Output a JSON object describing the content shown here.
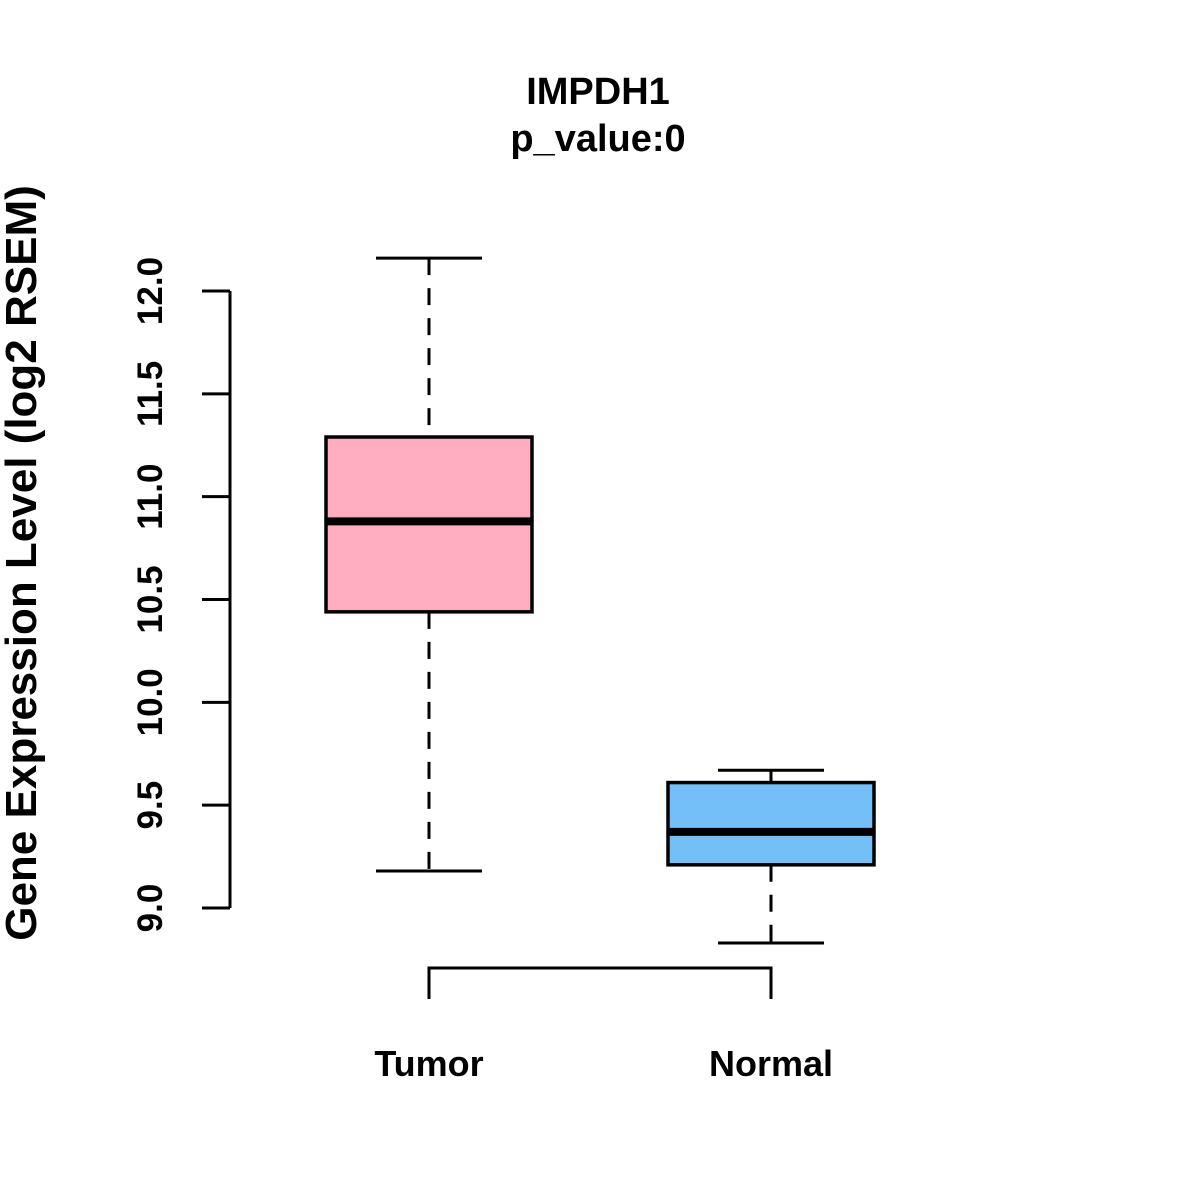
{
  "title": "IMPDH1",
  "subtitle": "p_value:0",
  "ylabel": "Gene Expression Level (log2 RSEM)",
  "chart_data": {
    "type": "boxplot",
    "title": "IMPDH1",
    "subtitle": "p_value:0",
    "ylabel": "Gene Expression Level (log2 RSEM)",
    "xlabel": "",
    "categories": [
      "Tumor",
      "Normal"
    ],
    "series": [
      {
        "name": "Tumor",
        "color": "#FFAEC0",
        "whisker_low": 9.18,
        "q1": 10.44,
        "median": 10.88,
        "q3": 11.29,
        "whisker_high": 12.16
      },
      {
        "name": "Normal",
        "color": "#74BFF7",
        "whisker_low": 8.83,
        "q1": 9.21,
        "median": 9.37,
        "q3": 9.61,
        "whisker_high": 9.67
      }
    ],
    "y_axis": {
      "min": 9.0,
      "max": 12.0,
      "ticks": [
        9.0,
        9.5,
        10.0,
        10.5,
        11.0,
        11.5,
        12.0
      ],
      "tick_labels": [
        "9.0",
        "9.5",
        "10.0",
        "10.5",
        "11.0",
        "11.5",
        "12.0"
      ]
    },
    "comparison_bracket": true,
    "box_border_color": "#000000",
    "median_color": "#000000",
    "background": "#FFFFFF",
    "grid": false,
    "legend": "none"
  }
}
